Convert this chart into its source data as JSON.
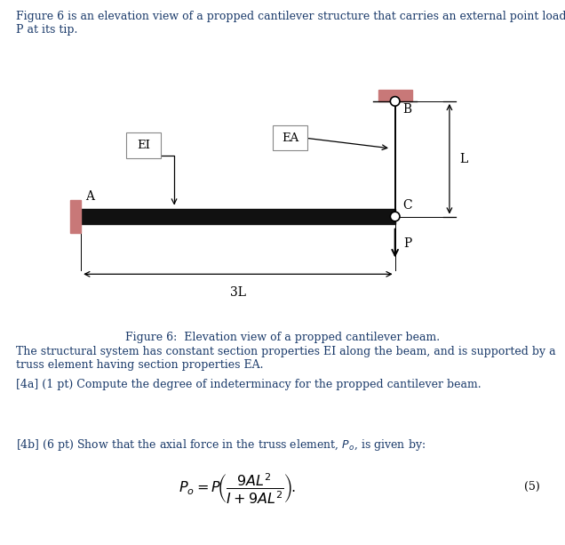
{
  "header_text": "Figure 6 is an elevation view of a propped cantilever structure that carries an external point load\nP at its tip.",
  "fig_caption": "Figure 6:  Elevation view of a propped cantilever beam.",
  "para1": "The structural system has constant section properties EI along the beam, and is supported by a\ntruss element having section properties EA.",
  "para2_a": "[4a] (1 pt) Compute the degree of indeterminacy for the propped cantilever beam.",
  "para2_b": "[4b] (6 pt) Show that the axial force in the truss element, $P_o$, is given by:",
  "eq_number": "(5)",
  "beam_color": "#111111",
  "support_color": "#c87878",
  "fig_bg": "#ffffff",
  "text_color": "#1a3a6a"
}
